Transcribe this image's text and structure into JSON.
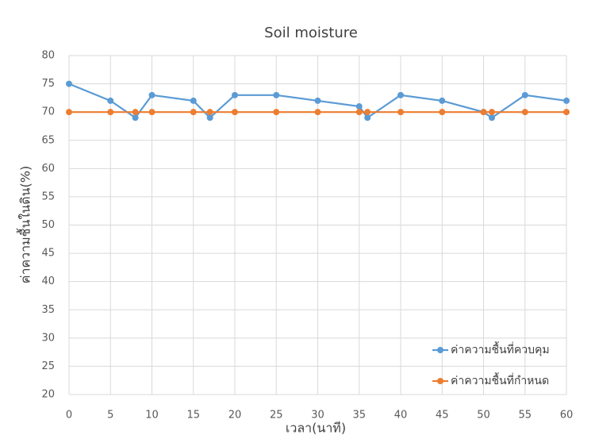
{
  "chart_data": {
    "type": "line",
    "title": "Soil moisture",
    "x_label": "เวลา(นาที)",
    "y_label": "ค่าความชื้นในดิน(%)",
    "x": [
      0,
      5,
      8,
      10,
      15,
      17,
      20,
      25,
      30,
      35,
      36,
      40,
      45,
      50,
      51,
      55,
      60
    ],
    "series": [
      {
        "name": "ค่าความชื้นที่ควบคุม",
        "color": "#5b9bd5",
        "values": [
          75,
          72,
          69,
          73,
          72,
          69,
          73,
          73,
          72,
          71,
          69,
          73,
          72,
          70,
          69,
          73,
          72
        ]
      },
      {
        "name": "ค่าความชื้นที่กำหนด",
        "color": "#ed7d31",
        "values": [
          70,
          70,
          70,
          70,
          70,
          70,
          70,
          70,
          70,
          70,
          70,
          70,
          70,
          70,
          70,
          70,
          70
        ]
      }
    ],
    "xlim": [
      0,
      60
    ],
    "xticks": [
      0,
      5,
      10,
      15,
      20,
      25,
      30,
      35,
      40,
      45,
      50,
      55,
      60
    ],
    "ylim": [
      20,
      80
    ],
    "yticks": [
      20,
      25,
      30,
      35,
      40,
      45,
      50,
      55,
      60,
      65,
      70,
      75,
      80
    ],
    "grid": true,
    "legend": "lower right"
  }
}
